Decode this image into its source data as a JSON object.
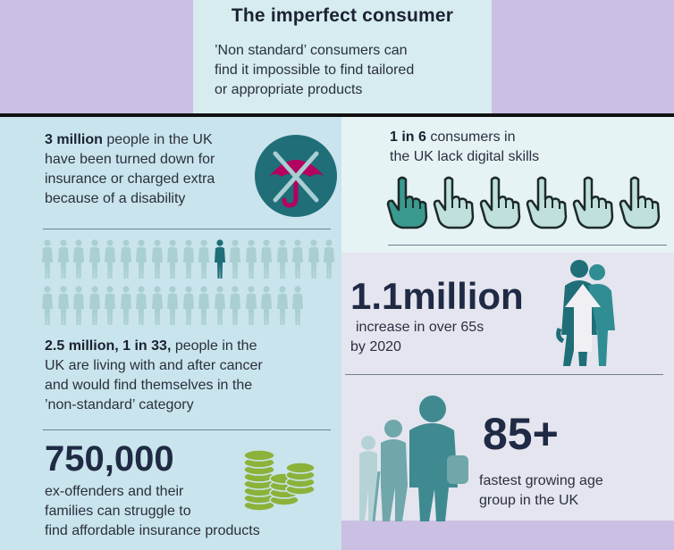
{
  "header": {
    "title": "The imperfect consumer",
    "subtitle_lines": [
      "’Non standard’ consumers  can",
      "find it impossible to find tailored",
      "or appropriate products"
    ]
  },
  "disability": {
    "highlight": "3 million",
    "lines": [
      " people in the UK",
      "have been turned down for",
      "insurance or charged extra",
      "because of a disability"
    ],
    "icon": "crossed-umbrella-icon"
  },
  "digital": {
    "highlight": "1 in 6",
    "lines": [
      " consumers in",
      "the UK lack digital skills"
    ],
    "icon": "pointing-hand-icon",
    "hands_total": 6,
    "hands_highlighted": 1
  },
  "cancer": {
    "highlight": "2.5 million, 1 in 33,",
    "lines": [
      " people in the",
      "UK are living with and after cancer",
      "and would find themselves in the",
      "’non-standard’ category"
    ],
    "icon": "person-icon",
    "people_total": 33,
    "people_highlighted": 1
  },
  "ageing": {
    "big": "1.1million",
    "lines": [
      "increase in over 65s",
      "by 2020"
    ],
    "icon": "elderly-couple-up-arrow-icon"
  },
  "age85": {
    "big": "85+",
    "lines": [
      "fastest growing age",
      "group in the UK"
    ],
    "icon": "elderly-people-icon"
  },
  "offenders": {
    "big": "750,000",
    "lines": [
      "ex-offenders and their",
      "families can struggle to",
      "find affordable insurance products"
    ],
    "icon": "coin-stacks-icon"
  },
  "colors": {
    "teal_dark": "#1f6e78",
    "teal_light": "#a9cfd3",
    "magenta": "#b4005f",
    "coin_green": "#8cb23a",
    "navy": "#1f2a44"
  }
}
